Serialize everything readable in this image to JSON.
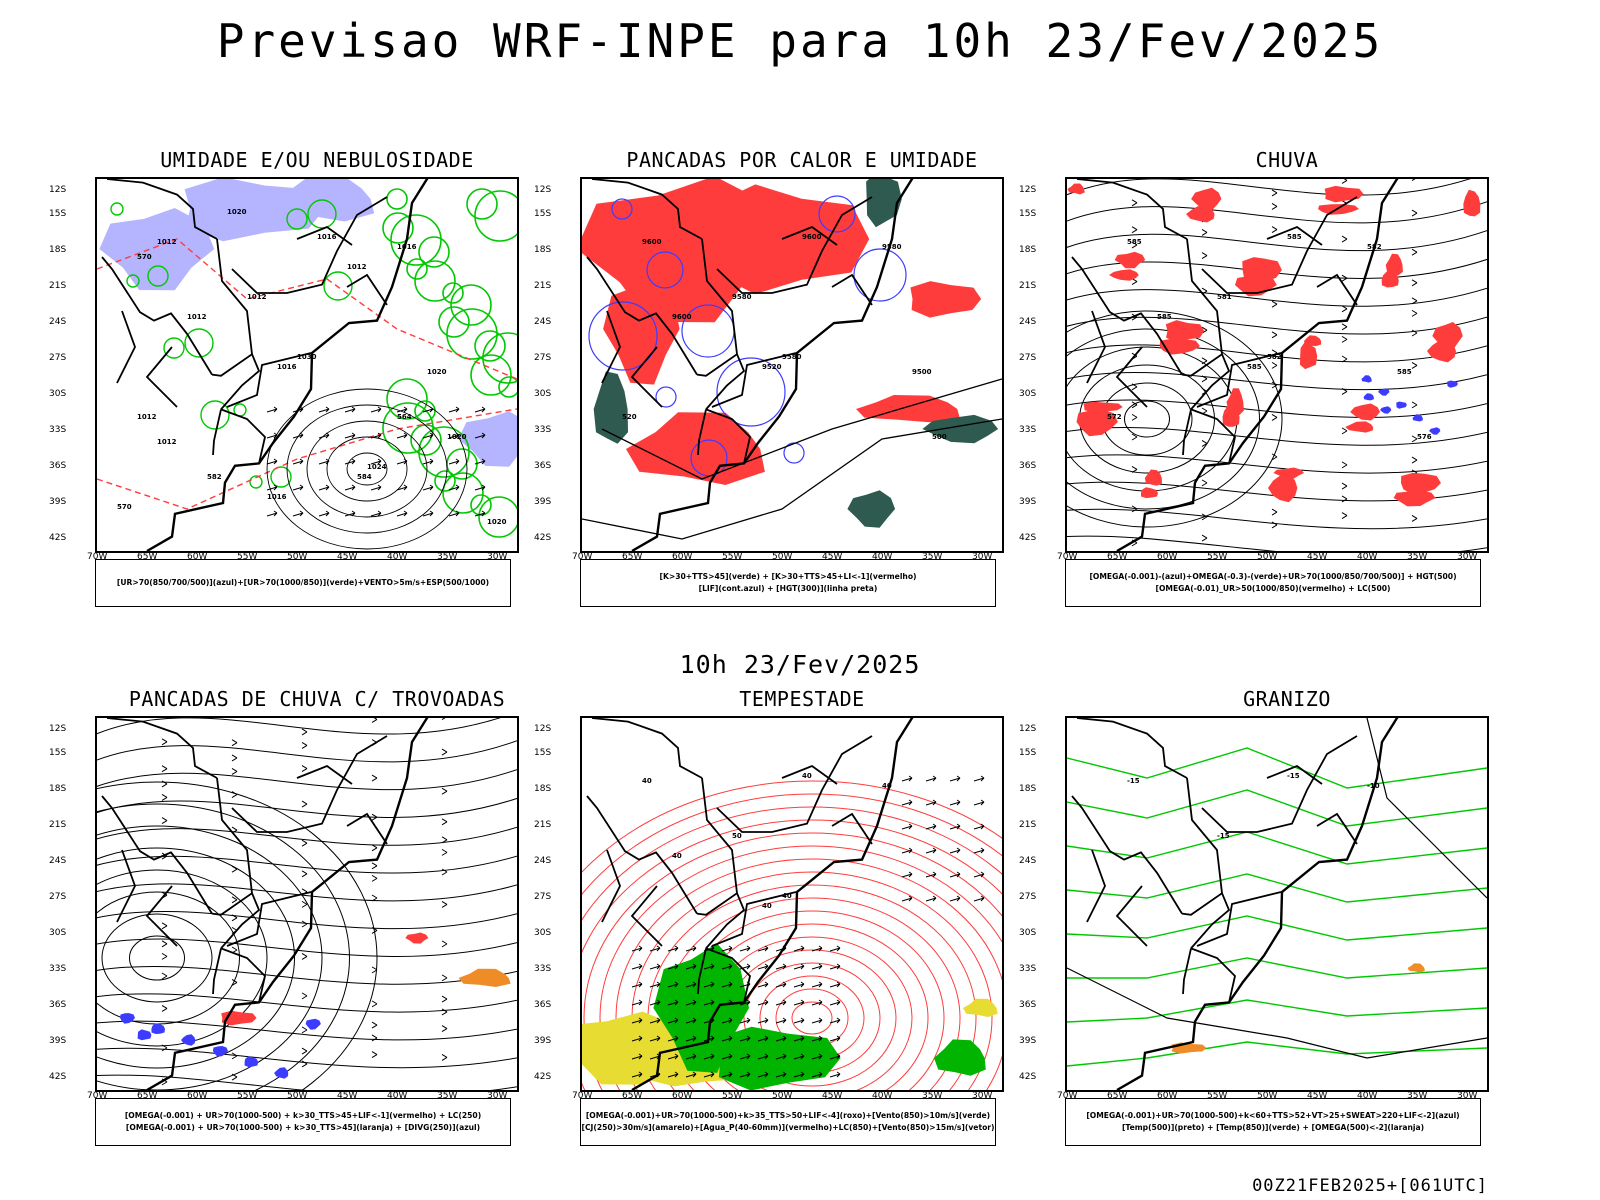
{
  "title": "Previsao WRF-INPE  para 10h 23/Fev/2025",
  "mid_title": "10h 23/Fev/2025",
  "footer": "00Z21FEB2025+[061UTC]",
  "lat_labels": [
    "12S",
    "15S",
    "18S",
    "21S",
    "24S",
    "27S",
    "30S",
    "33S",
    "36S",
    "39S",
    "42S"
  ],
  "lon_labels": [
    "70W",
    "65W",
    "60W",
    "55W",
    "50W",
    "45W",
    "40W",
    "35W",
    "30W"
  ],
  "colors": {
    "blue_fill": "#b4b4ff",
    "green_line": "#00c800",
    "red_fill": "#ff3c3c",
    "dark_teal": "#2f5a50",
    "orange": "#f08c28",
    "yellow": "#e6dc32",
    "contour_blue": "#3c3cff"
  },
  "panels": [
    {
      "title": "UMIDADE E/OU NEBULOSIDADE",
      "legend": [
        "[UR>70(850/700/500)](azul)+[UR>70(1000/850)](verde)+VENTO>5m/s+ESP(500/1000)"
      ],
      "labels": [
        "1012",
        "1016",
        "1016",
        "1012",
        "1012",
        "1030",
        "1016",
        "1020",
        "1020",
        "1012",
        "1012",
        "1024",
        "1016",
        "1020",
        "1020",
        "1012",
        "570",
        "564",
        "570",
        "584",
        "582"
      ]
    },
    {
      "title": "PANCADAS POR CALOR E UMIDADE",
      "legend": [
        "[K>30+TTS>45](verde) + [K>30+TTS>45+LI<-1](vermelho)",
        "[LIF](cont.azul) + [HGT(300)](linha preta)"
      ],
      "labels": [
        "9600",
        "9600",
        "9580",
        "9580",
        "9600",
        "9580",
        "9520",
        "9500",
        "500",
        "520"
      ]
    },
    {
      "title": "CHUVA",
      "legend": [
        "[OMEGA(-0.001)-(azul)+OMEGA(-0.3)-(verde)+UR>70(1000/850/700/500)] + HGT(500)",
        "[OMEGA(-0.01)_UR>50(1000/850)(vermelho) + LC(500)"
      ],
      "labels": [
        "585",
        "585",
        "582",
        "581",
        "585",
        "582",
        "585",
        "585",
        "576",
        "572"
      ]
    },
    {
      "title": "PANCADAS DE CHUVA C/ TROVOADAS",
      "legend": [
        "[OMEGA(-0.001) + UR>70(1000-500) + k>30_TTS>45+LIF<-1](vermelho) + LC(250)",
        "[OMEGA(-0.001) + UR>70(1000-500) + k>30_TTS>45](laranja) + [DIVG(250)](azul)"
      ],
      "labels": []
    },
    {
      "title": "TEMPESTADE",
      "legend": [
        "[OMEGA(-0.001)+UR>70(1000-500)+k>35_TTS>50+LIF<-4](roxo)+[Vento(850)>10m/s](verde)",
        "[CJ(250)>30m/s](amarelo)+[Agua_P(40-60mm)](vermelho)+LC(850)+[Vento(850)>15m/s](vetor)"
      ],
      "labels": [
        "40",
        "40",
        "40",
        "50",
        "40",
        "40",
        "40"
      ]
    },
    {
      "title": "GRANIZO",
      "legend": [
        "[OMEGA(-0.001)+UR>70(1000-500)+k<60+TTS>52+VT>25+SWEAT>220+LIF<-2](azul)",
        "[Temp(500)](preto) + [Temp(850)](verde) + [OMEGA(500)<-2](laranja)"
      ],
      "labels": [
        "-15",
        "-15",
        "-10",
        "-15"
      ]
    }
  ]
}
